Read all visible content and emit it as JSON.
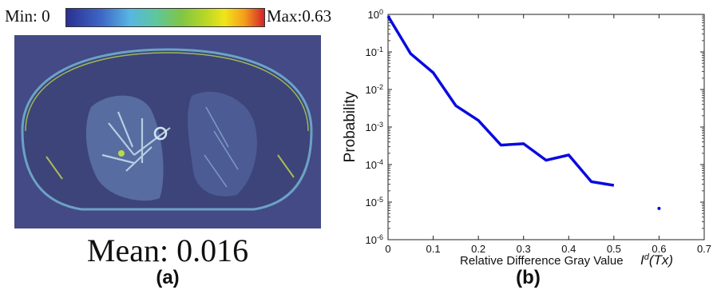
{
  "panel_a": {
    "colorbar": {
      "min_label": "Min: 0",
      "max_label": "Max:0.63"
    },
    "mean_text": "Mean: 0.016",
    "label": "(a)"
  },
  "panel_b": {
    "label": "(b)"
  },
  "chart_data": {
    "type": "line",
    "xlabel": "Relative Difference Gray Value",
    "xlabel_math": "I^d(Tx)",
    "ylabel": "Probability",
    "xlim": [
      0,
      0.7
    ],
    "ylim": [
      1e-06,
      1
    ],
    "yscale": "log",
    "x_ticks": [
      "0",
      "0.1",
      "0.2",
      "0.3",
      "0.4",
      "0.5",
      "0.6",
      "0.7"
    ],
    "y_tick_exponents": [
      0,
      -1,
      -2,
      -3,
      -4,
      -5,
      -6
    ],
    "series": [
      {
        "color": "#0a0ae0",
        "x": [
          0,
          0.05,
          0.1,
          0.15,
          0.2,
          0.25,
          0.3,
          0.35,
          0.4,
          0.45,
          0.5
        ],
        "y": [
          0.9,
          0.09,
          0.028,
          0.0037,
          0.0015,
          0.00033,
          0.00036,
          0.00013,
          0.00018,
          3.5e-05,
          2.8e-05
        ]
      },
      {
        "color": "#0a0ae0",
        "marker": "point",
        "x": [
          0.6
        ],
        "y": [
          6.8e-06
        ]
      }
    ]
  }
}
